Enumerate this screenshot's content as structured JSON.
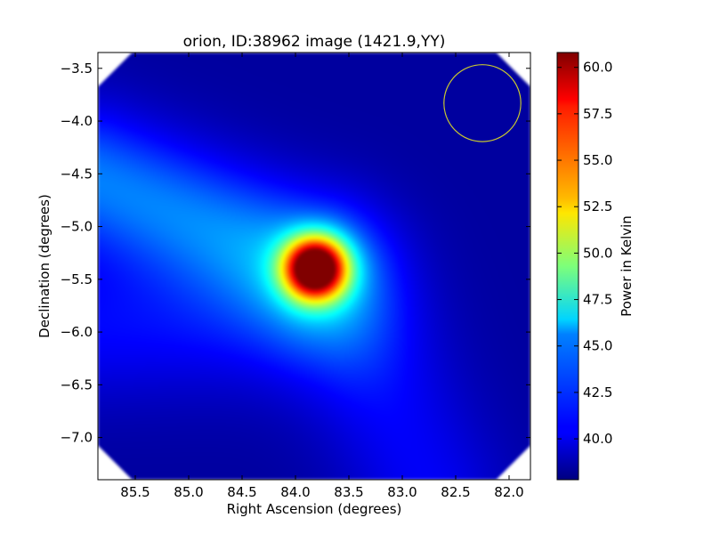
{
  "chart_data": {
    "type": "heatmap",
    "title": "orion, ID:38962 image (1421.9,YY)",
    "xlabel": "Right Ascension (degrees)",
    "ylabel": "Declination (degrees)",
    "colorbar_label": "Power in Kelvin",
    "xlim": [
      85.85,
      81.8
    ],
    "ylim": [
      -7.4,
      -3.35
    ],
    "xticks": [
      85.5,
      85.0,
      84.5,
      84.0,
      83.5,
      83.0,
      82.5,
      82.0
    ],
    "xtick_labels": [
      "85.5",
      "85.0",
      "84.5",
      "84.0",
      "83.5",
      "83.0",
      "82.5",
      "82.0"
    ],
    "yticks": [
      -3.5,
      -4.0,
      -4.5,
      -5.0,
      -5.5,
      -6.0,
      -6.5,
      -7.0
    ],
    "ytick_labels": [
      "−3.5",
      "−4.0",
      "−4.5",
      "−5.0",
      "−5.5",
      "−6.0",
      "−6.5",
      "−7.0"
    ],
    "clim": [
      37.8,
      60.8
    ],
    "colorbar_ticks": [
      40.0,
      42.5,
      45.0,
      47.5,
      50.0,
      52.5,
      55.0,
      57.5,
      60.0
    ],
    "colorbar_tick_labels": [
      "40.0",
      "42.5",
      "45.0",
      "47.5",
      "50.0",
      "52.5",
      "55.0",
      "57.5",
      "60.0"
    ],
    "colormap": "jet",
    "background_level": 38.5,
    "peak": {
      "ra": 83.82,
      "dec": -5.39,
      "value": 60.8
    },
    "features": [
      {
        "kind": "gaussian",
        "ra": 83.82,
        "dec": -5.39,
        "sigma": 0.2,
        "amplitude": 22.0
      },
      {
        "kind": "ridge",
        "from": [
          85.9,
          -4.55
        ],
        "to": [
          83.9,
          -5.35
        ],
        "width": 0.45,
        "amplitude": 5.0
      },
      {
        "kind": "ridge",
        "from": [
          85.9,
          -5.95
        ],
        "to": [
          83.7,
          -5.85
        ],
        "width": 0.5,
        "amplitude": 2.2
      },
      {
        "kind": "ridge",
        "from": [
          83.6,
          -5.6
        ],
        "to": [
          82.8,
          -7.4
        ],
        "width": 0.5,
        "amplitude": 2.0
      }
    ],
    "beam_circle": {
      "ra": 82.25,
      "dec": -3.83,
      "radius_deg": 0.36,
      "color": "#c8c830"
    },
    "masked_corners": true
  }
}
